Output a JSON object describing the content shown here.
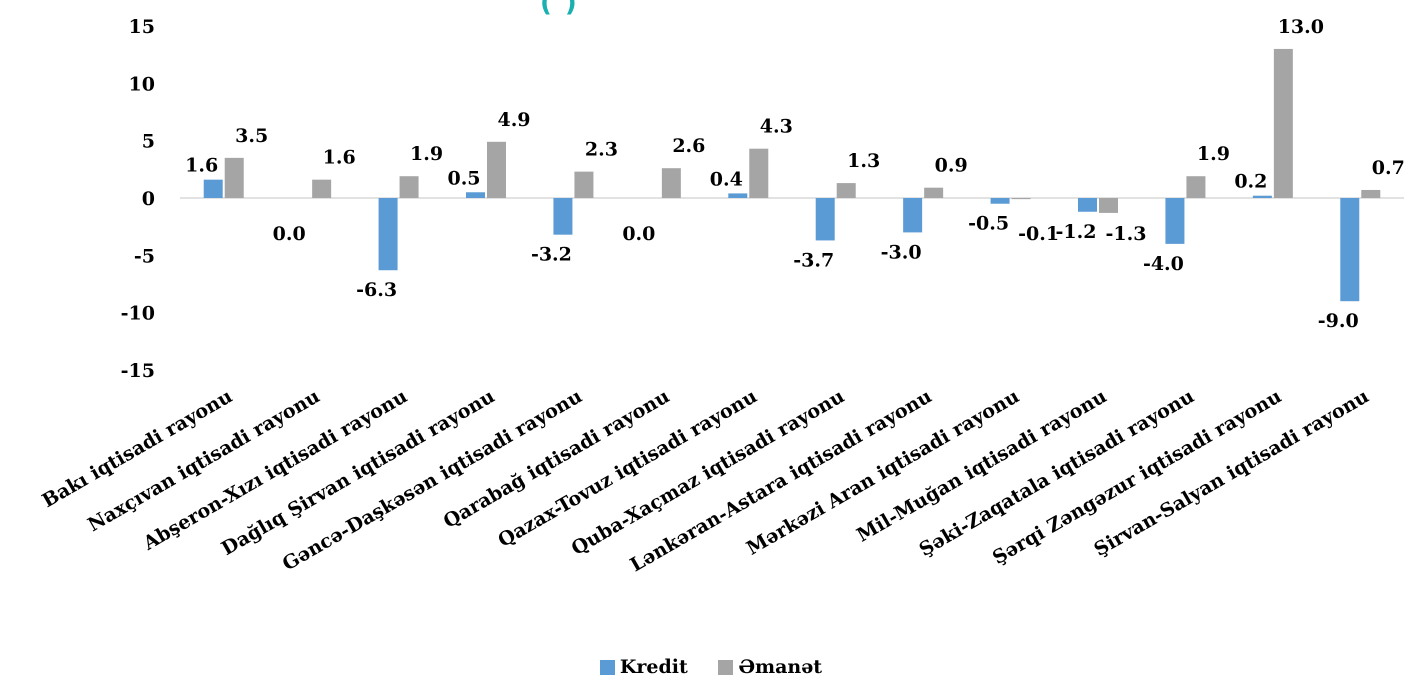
{
  "chart_data": {
    "type": "bar",
    "title_fragment": "(                         )",
    "categories": [
      "Bakı iqtisadi rayonu",
      "Naxçıvan iqtisadi rayonu",
      "Abşeron-Xızı iqtisadi rayonu",
      "Dağlıq Şirvan iqtisadi rayonu",
      "Gəncə-Daşkəsən iqtisadi rayonu",
      "Qarabağ iqtisadi rayonu",
      "Qazax-Tovuz iqtisadi rayonu",
      "Quba-Xaçmaz iqtisadi rayonu",
      "Lənkəran-Astara iqtisadi rayonu",
      "Mərkəzi Aran iqtisadi rayonu",
      "Mil-Muğan iqtisadi rayonu",
      "Şəki-Zaqatala iqtisadi rayonu",
      "Şərqi Zəngəzur iqtisadi rayonu",
      "Şirvan-Salyan iqtisadi rayonu"
    ],
    "series": [
      {
        "name": "Kredit",
        "color": "#5b9bd5",
        "values": [
          1.6,
          0.0,
          -6.3,
          0.5,
          -3.2,
          0.0,
          0.4,
          -3.7,
          -3.0,
          -0.5,
          -1.2,
          -4.0,
          0.2,
          -9.0
        ],
        "labels": [
          "1.6",
          "0.0",
          "-6.3",
          "0.5",
          "-3.2",
          "0.0",
          "0.4",
          "-3.7",
          "-3.0",
          "-0.5",
          "-1.2",
          "-4.0",
          "0.2",
          "-9.0"
        ]
      },
      {
        "name": "Əmanət",
        "color": "#a5a5a5",
        "values": [
          3.5,
          1.6,
          1.9,
          4.9,
          2.3,
          2.6,
          4.3,
          1.3,
          0.9,
          -0.1,
          -1.3,
          1.9,
          13.0,
          0.7
        ],
        "labels": [
          "3.5",
          "1.6",
          "1.9",
          "4.9",
          "2.3",
          "2.6",
          "4.3",
          "1.3",
          "0.9",
          "-0.1",
          "-1.3",
          "1.9",
          "13.0",
          "0.7"
        ]
      }
    ],
    "yticks": [
      "15",
      "10",
      "5",
      "0",
      "-5",
      "-10",
      "-15"
    ],
    "ylim": [
      -15,
      15
    ],
    "grid": false,
    "legend_position": "bottom"
  }
}
